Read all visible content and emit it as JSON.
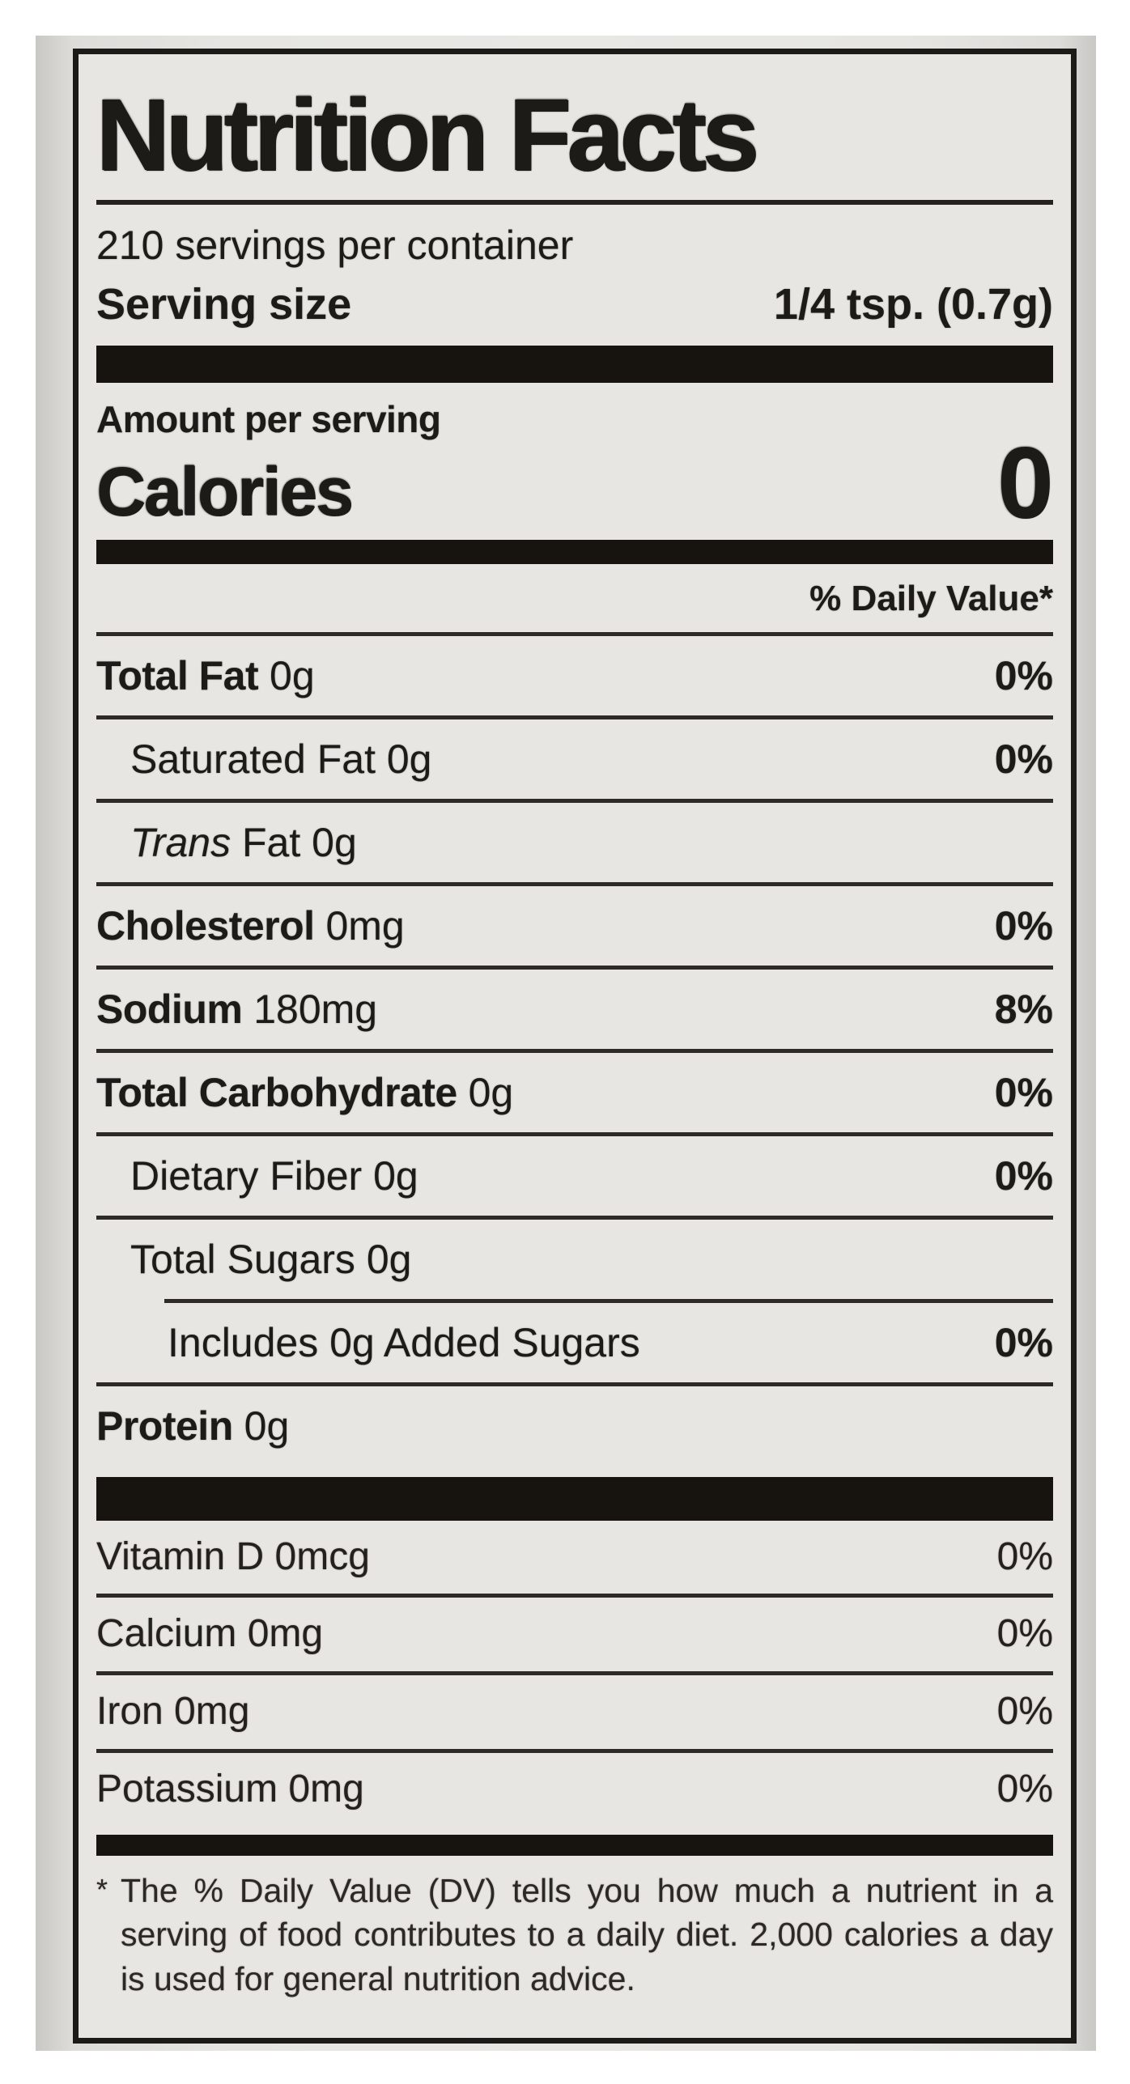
{
  "photo": {
    "background": "#ffffff",
    "backdrop_gray": "#e6e5e2",
    "label_background": "#e7e6e3",
    "ink": "#1d1b18"
  },
  "label": {
    "title": "Nutrition Facts",
    "servings_line": "210 servings per container",
    "serving_size": {
      "label": "Serving size",
      "value": "1/4 tsp. (0.7g)"
    },
    "amount_per_serving": "Amount per serving",
    "calories": {
      "label": "Calories",
      "value": "0"
    },
    "daily_value_header": "% Daily Value*",
    "nutrient_rows": [
      {
        "name": "Total Fat",
        "amount": "0g",
        "percent": "0%",
        "indent": 0,
        "name_bold": true,
        "percent_bold": true
      },
      {
        "name": "Saturated Fat",
        "amount": "0g",
        "percent": "",
        "indent": 1,
        "name_bold": false,
        "percent_bold": true,
        "percent_override": "0%"
      },
      {
        "italic_prefix": "Trans",
        "name": "Fat",
        "amount": "0g",
        "percent": "",
        "indent": 1,
        "name_bold": false
      },
      {
        "name": "Cholesterol",
        "amount": "0mg",
        "percent": "0%",
        "indent": 0,
        "name_bold": true,
        "percent_bold": true
      },
      {
        "name": "Sodium",
        "amount": "180mg",
        "percent": "8%",
        "indent": 0,
        "name_bold": true,
        "percent_bold": true
      },
      {
        "name": "Total Carbohydrate",
        "amount": "0g",
        "percent": "0%",
        "indent": 0,
        "name_bold": true,
        "percent_bold": true
      },
      {
        "name": "Dietary Fiber",
        "amount": "0g",
        "percent": "0%",
        "indent": 1,
        "name_bold": false,
        "percent_bold": true
      },
      {
        "name": "Total Sugars",
        "amount": "0g",
        "percent": "",
        "indent": 1,
        "name_bold": false
      },
      {
        "name": "Includes 0g Added Sugars",
        "amount": "",
        "percent": "0%",
        "indent": 2,
        "name_bold": false,
        "percent_bold": true,
        "divider_indented": true
      },
      {
        "name": "Protein",
        "amount": "0g",
        "percent": "",
        "indent": 0,
        "name_bold": true
      }
    ],
    "vitamin_rows": [
      {
        "name": "Vitamin D",
        "amount": "0mcg",
        "percent": "0%"
      },
      {
        "name": "Calcium",
        "amount": "0mg",
        "percent": "0%"
      },
      {
        "name": "Iron",
        "amount": "0mg",
        "percent": "0%"
      },
      {
        "name": "Potassium",
        "amount": "0mg",
        "percent": "0%"
      }
    ],
    "footnote": {
      "marker": "*",
      "text": "The % Daily Value (DV) tells you how much a nutrient in a serving of food contributes to a daily diet. 2,000 calories a day is used for general nutrition advice."
    }
  }
}
